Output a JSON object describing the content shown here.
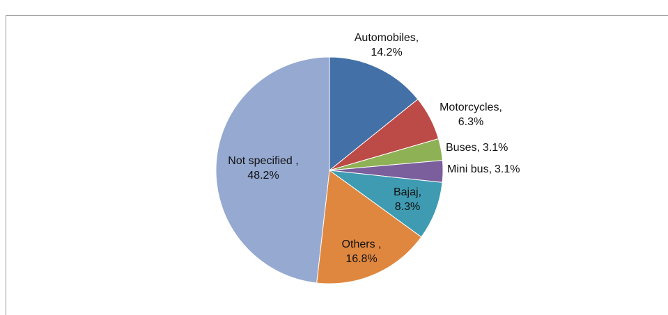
{
  "chart_data": {
    "type": "pie",
    "categories": [
      "Automobiles,",
      "Motorcycles,",
      "Buses,",
      "Mini bus,",
      "Bajaj,",
      "Others ,",
      "Not specified ,"
    ],
    "values": [
      14.2,
      6.3,
      3.1,
      3.1,
      8.3,
      16.8,
      48.2
    ],
    "value_labels": [
      "14.2%",
      "6.3%",
      "3.1%",
      "3.1%",
      "8.3%",
      "16.8%",
      "48.2%"
    ],
    "colors": [
      "#4470a8",
      "#bc4a46",
      "#8fb155",
      "#7b5e9c",
      "#3e9bb1",
      "#e0873f",
      "#95a9d1"
    ]
  }
}
